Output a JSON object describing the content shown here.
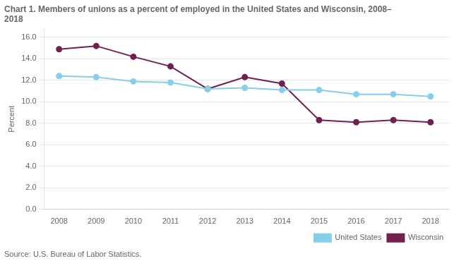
{
  "chart_data": {
    "type": "line",
    "title": "Chart 1. Members of unions as a percent of employed in the United States and Wisconsin, 2008–\n2018",
    "y_label": "Percent",
    "source": "Source: U.S. Bureau of Labor Statistics.",
    "x": [
      2008,
      2009,
      2010,
      2011,
      2012,
      2013,
      2014,
      2015,
      2016,
      2017,
      2018
    ],
    "series": [
      {
        "name": "United States",
        "color": "#87ceeb",
        "values": [
          12.4,
          12.3,
          11.9,
          11.8,
          11.2,
          11.3,
          11.1,
          11.1,
          10.7,
          10.7,
          10.5
        ]
      },
      {
        "name": "Wisconsin",
        "color": "#722050",
        "values": [
          14.9,
          15.2,
          14.2,
          13.3,
          11.2,
          12.3,
          11.7,
          8.3,
          8.1,
          8.3,
          8.1
        ]
      }
    ],
    "xlim": [
      2007.6,
      2018.5
    ],
    "xticks": [
      2008,
      2009,
      2010,
      2011,
      2012,
      2013,
      2014,
      2015,
      2016,
      2017,
      2018
    ],
    "ylim": [
      0,
      16.8
    ],
    "yticks": [
      {
        "value": 0,
        "label": "0.0"
      },
      {
        "value": 2,
        "label": "2.0"
      },
      {
        "value": 4,
        "label": "4.0"
      },
      {
        "value": 6,
        "label": "6.0"
      },
      {
        "value": 8,
        "label": "8.0"
      },
      {
        "value": 10,
        "label": "10.0"
      },
      {
        "value": 12,
        "label": "12.0"
      },
      {
        "value": 14,
        "label": "14.0"
      },
      {
        "value": 16,
        "label": "16.0"
      }
    ],
    "marker": "circle",
    "grid": "y",
    "legend": "lower right"
  }
}
